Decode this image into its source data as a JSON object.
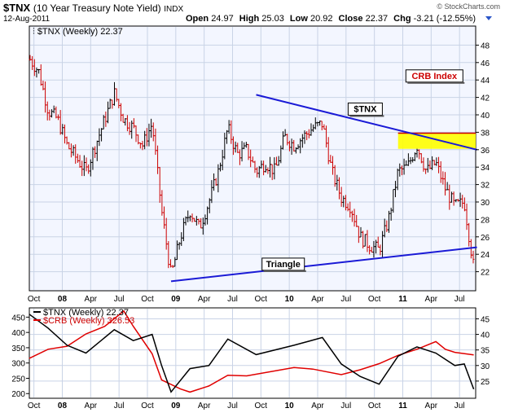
{
  "header": {
    "symbol": "$TNX",
    "name": "(10 Year Treasury Note Yield)",
    "exchange": "INDX",
    "date": "12-Aug-2011",
    "open_label": "Open",
    "open": "24.97",
    "high_label": "High",
    "high": "25.03",
    "low_label": "Low",
    "low": "20.92",
    "close_label": "Close",
    "close": "22.37",
    "chg_label": "Chg",
    "chg": "-3.21 (-12.55%)",
    "watermark": "© StockCharts.com"
  },
  "colors": {
    "panel_bg": "#f3f6ff",
    "grid": "#c9d3e6",
    "up_bar": "#000000",
    "down_bar": "#cc0000",
    "trendline": "#1a1ad6",
    "highlight": "#ffff00",
    "highlight_border": "#cc0000",
    "tnx_line": "#000000",
    "crb_line": "#e00000"
  },
  "chart_data": [
    {
      "type": "ohlc",
      "title": "$TNX (Weekly) 22.37",
      "legend_symbol": "$TNX",
      "legend_text": "(Weekly) 22.37",
      "time_range": [
        "2007-09",
        "2011-08"
      ],
      "x_ticks": [
        "Oct",
        "08",
        "Apr",
        "Jul",
        "Oct",
        "09",
        "Apr",
        "Jul",
        "Oct",
        "10",
        "Apr",
        "Jul",
        "Oct",
        "11",
        "Apr",
        "Jul"
      ],
      "ylim": [
        20,
        50
      ],
      "y_ticks": [
        22,
        24,
        26,
        28,
        30,
        32,
        34,
        36,
        38,
        40,
        42,
        44,
        46,
        48
      ],
      "y_axis_side": "right",
      "grid": true,
      "weekly_close_series": [
        {
          "date": "2007-09",
          "value": 46.5
        },
        {
          "date": "2007-10",
          "value": 45.0
        },
        {
          "date": "2007-11",
          "value": 40.5
        },
        {
          "date": "2007-12",
          "value": 39.5
        },
        {
          "date": "2008-01",
          "value": 36.5
        },
        {
          "date": "2008-02",
          "value": 35.0
        },
        {
          "date": "2008-03",
          "value": 33.5
        },
        {
          "date": "2008-04",
          "value": 36.5
        },
        {
          "date": "2008-05",
          "value": 39.5
        },
        {
          "date": "2008-06",
          "value": 42.5
        },
        {
          "date": "2008-07",
          "value": 39.5
        },
        {
          "date": "2008-08",
          "value": 38.5
        },
        {
          "date": "2008-09",
          "value": 36.5
        },
        {
          "date": "2008-10",
          "value": 39.0
        },
        {
          "date": "2008-11",
          "value": 29.0
        },
        {
          "date": "2008-12",
          "value": 21.5
        },
        {
          "date": "2009-01",
          "value": 26.0
        },
        {
          "date": "2009-02",
          "value": 29.0
        },
        {
          "date": "2009-03",
          "value": 27.0
        },
        {
          "date": "2009-04",
          "value": 30.0
        },
        {
          "date": "2009-05",
          "value": 33.5
        },
        {
          "date": "2009-06",
          "value": 38.5
        },
        {
          "date": "2009-07",
          "value": 35.5
        },
        {
          "date": "2009-08",
          "value": 36.0
        },
        {
          "date": "2009-09",
          "value": 33.5
        },
        {
          "date": "2009-10",
          "value": 34.5
        },
        {
          "date": "2009-11",
          "value": 33.5
        },
        {
          "date": "2009-12",
          "value": 37.5
        },
        {
          "date": "2010-01",
          "value": 36.5
        },
        {
          "date": "2010-02",
          "value": 37.5
        },
        {
          "date": "2010-03",
          "value": 38.5
        },
        {
          "date": "2010-04",
          "value": 39.0
        },
        {
          "date": "2010-05",
          "value": 33.5
        },
        {
          "date": "2010-06",
          "value": 30.5
        },
        {
          "date": "2010-07",
          "value": 29.5
        },
        {
          "date": "2010-08",
          "value": 26.0
        },
        {
          "date": "2010-09",
          "value": 25.0
        },
        {
          "date": "2010-10",
          "value": 24.5
        },
        {
          "date": "2010-11",
          "value": 28.0
        },
        {
          "date": "2010-12",
          "value": 33.5
        },
        {
          "date": "2011-01",
          "value": 34.0
        },
        {
          "date": "2011-02",
          "value": 36.5
        },
        {
          "date": "2011-03",
          "value": 33.5
        },
        {
          "date": "2011-04",
          "value": 34.5
        },
        {
          "date": "2011-05",
          "value": 31.5
        },
        {
          "date": "2011-06",
          "value": 29.5
        },
        {
          "date": "2011-07",
          "value": 30.0
        },
        {
          "date": "2011-08",
          "value": 22.4
        }
      ],
      "annotations": [
        {
          "text": "$TNX",
          "near": "2010-05"
        },
        {
          "text": "CRB Index",
          "near": "2011-01"
        },
        {
          "text": "Triangle",
          "near": "2009-11"
        }
      ],
      "trendlines": [
        {
          "name": "upper",
          "points": [
            {
              "date": "2009-09",
              "value": 42.3
            },
            {
              "date": "2011-08",
              "value": 36.0
            }
          ]
        },
        {
          "name": "lower",
          "points": [
            {
              "date": "2008-12",
              "value": 20.9
            },
            {
              "date": "2011-08",
              "value": 24.8
            }
          ]
        }
      ],
      "highlight_zone": {
        "from_date": "2010-12",
        "to_date": "2011-08",
        "low": 36.1,
        "high": 37.9
      }
    },
    {
      "type": "line",
      "x_ticks": [
        "Oct",
        "08",
        "Apr",
        "Jul",
        "Oct",
        "09",
        "Apr",
        "Jul",
        "Oct",
        "10",
        "Apr",
        "Jul",
        "Oct",
        "11",
        "Apr",
        "Jul"
      ],
      "legend_placement": "top-left",
      "series": [
        {
          "name": "$TNX",
          "legend_text": "(Weekly) 22.37",
          "axis": "right",
          "ylim": [
            20,
            48
          ],
          "y_ticks": [
            25,
            30,
            35,
            40,
            45
          ],
          "values": [
            {
              "date": "2007-09",
              "value": 46.5
            },
            {
              "date": "2007-11",
              "value": 42.0
            },
            {
              "date": "2008-01",
              "value": 36.5
            },
            {
              "date": "2008-03",
              "value": 34.0
            },
            {
              "date": "2008-06",
              "value": 41.5
            },
            {
              "date": "2008-08",
              "value": 38.0
            },
            {
              "date": "2008-10",
              "value": 40.0
            },
            {
              "date": "2008-11",
              "value": 30.0
            },
            {
              "date": "2008-12",
              "value": 21.5
            },
            {
              "date": "2009-02",
              "value": 29.0
            },
            {
              "date": "2009-04",
              "value": 30.0
            },
            {
              "date": "2009-06",
              "value": 38.5
            },
            {
              "date": "2009-09",
              "value": 33.5
            },
            {
              "date": "2010-01",
              "value": 36.5
            },
            {
              "date": "2010-04",
              "value": 39.0
            },
            {
              "date": "2010-06",
              "value": 30.5
            },
            {
              "date": "2010-08",
              "value": 26.5
            },
            {
              "date": "2010-10",
              "value": 24.0
            },
            {
              "date": "2010-12",
              "value": 33.0
            },
            {
              "date": "2011-02",
              "value": 36.0
            },
            {
              "date": "2011-04",
              "value": 34.0
            },
            {
              "date": "2011-06",
              "value": 30.0
            },
            {
              "date": "2011-07",
              "value": 30.5
            },
            {
              "date": "2011-08",
              "value": 22.4
            }
          ]
        },
        {
          "name": "$CRB",
          "legend_text": "(Weekly) 326.53",
          "axis": "left",
          "ylim": [
            190,
            475
          ],
          "y_ticks": [
            200,
            250,
            300,
            350,
            400,
            450
          ],
          "values": [
            {
              "date": "2007-09",
              "value": 315
            },
            {
              "date": "2007-11",
              "value": 345
            },
            {
              "date": "2008-01",
              "value": 355
            },
            {
              "date": "2008-03",
              "value": 395
            },
            {
              "date": "2008-05",
              "value": 420
            },
            {
              "date": "2008-07",
              "value": 470
            },
            {
              "date": "2008-08",
              "value": 420
            },
            {
              "date": "2008-10",
              "value": 330
            },
            {
              "date": "2008-11",
              "value": 245
            },
            {
              "date": "2009-01",
              "value": 215
            },
            {
              "date": "2009-02",
              "value": 205
            },
            {
              "date": "2009-04",
              "value": 225
            },
            {
              "date": "2009-06",
              "value": 260
            },
            {
              "date": "2009-08",
              "value": 258
            },
            {
              "date": "2010-01",
              "value": 285
            },
            {
              "date": "2010-03",
              "value": 280
            },
            {
              "date": "2010-06",
              "value": 262
            },
            {
              "date": "2010-08",
              "value": 278
            },
            {
              "date": "2010-10",
              "value": 298
            },
            {
              "date": "2010-12",
              "value": 325
            },
            {
              "date": "2011-02",
              "value": 345
            },
            {
              "date": "2011-04",
              "value": 370
            },
            {
              "date": "2011-05",
              "value": 345
            },
            {
              "date": "2011-06",
              "value": 335
            },
            {
              "date": "2011-08",
              "value": 326.5
            }
          ]
        }
      ]
    }
  ]
}
